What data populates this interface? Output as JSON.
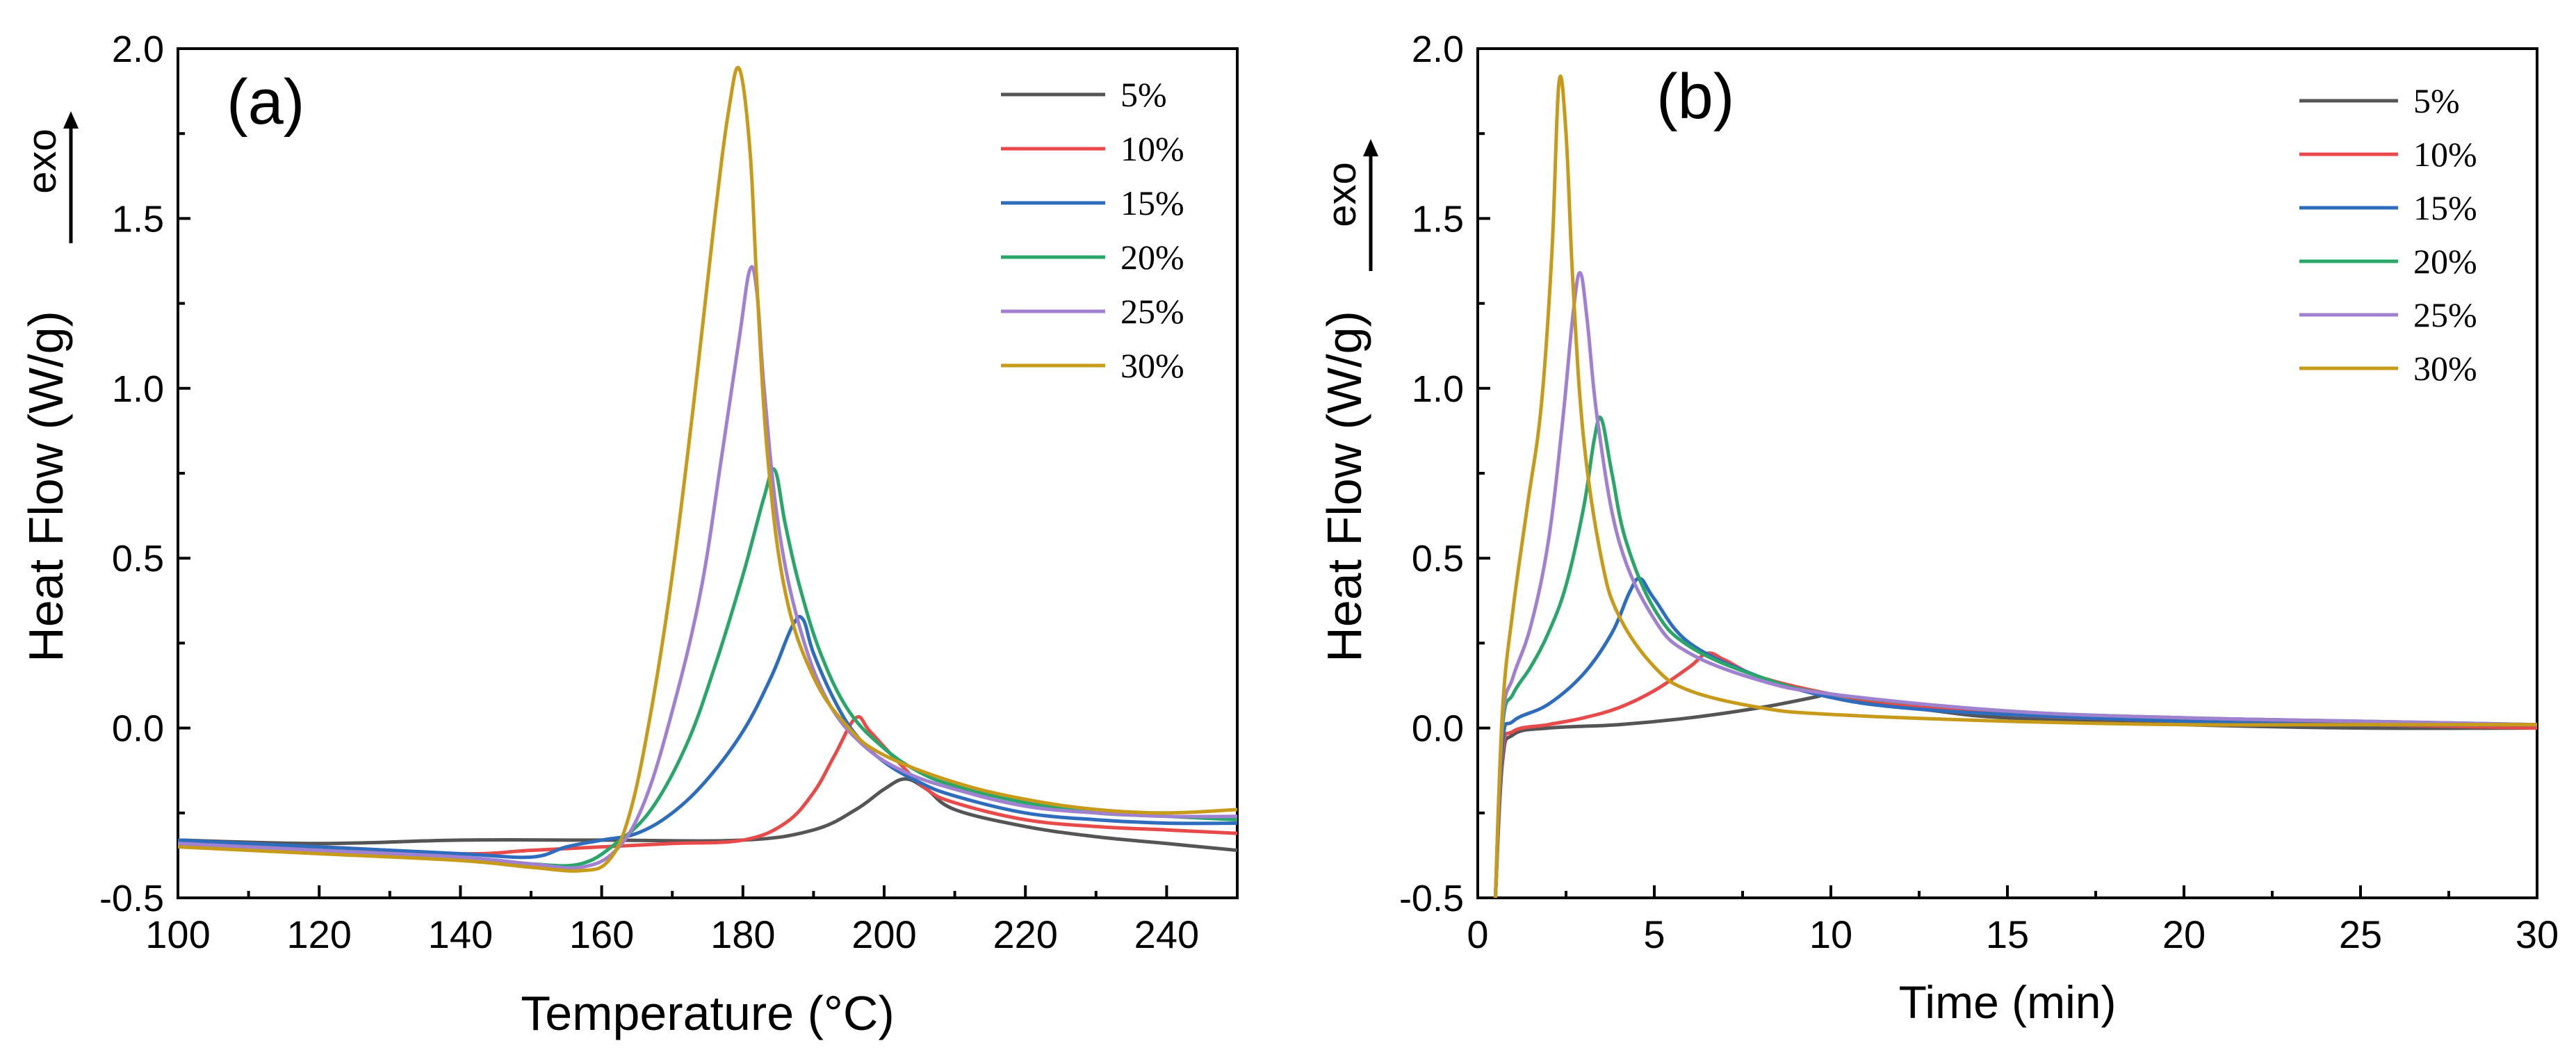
{
  "chart_data": [
    {
      "type": "line",
      "panel_label": "(a)",
      "xlabel": "Temperature (°C)",
      "ylabel": "Heat Flow (W/g)",
      "annotation": "exo",
      "xlim": [
        100,
        250
      ],
      "ylim": [
        -0.5,
        2.0
      ],
      "xticks": [
        "100",
        "120",
        "140",
        "160",
        "180",
        "200",
        "220",
        "240"
      ],
      "xtick_values": [
        100,
        120,
        140,
        160,
        180,
        200,
        220,
        240
      ],
      "yticks": [
        "-0.5",
        "0.0",
        "0.5",
        "1.0",
        "1.5",
        "2.0"
      ],
      "ytick_values": [
        -0.5,
        0.0,
        0.5,
        1.0,
        1.5,
        2.0
      ],
      "legend_position": "top-right",
      "series": [
        {
          "name": "5%",
          "color": "#555555",
          "x": [
            100,
            120,
            140,
            160,
            180,
            190,
            196,
            200,
            203,
            206,
            210,
            220,
            230,
            240,
            250
          ],
          "y": [
            -0.33,
            -0.34,
            -0.33,
            -0.33,
            -0.33,
            -0.3,
            -0.24,
            -0.18,
            -0.15,
            -0.18,
            -0.24,
            -0.29,
            -0.32,
            -0.34,
            -0.36
          ]
        },
        {
          "name": "10%",
          "color": "#e84a4a",
          "x": [
            100,
            120,
            140,
            150,
            160,
            170,
            180,
            186,
            190,
            193,
            196,
            198,
            202,
            206,
            210,
            220,
            230,
            240,
            250
          ],
          "y": [
            -0.34,
            -0.35,
            -0.37,
            -0.36,
            -0.35,
            -0.34,
            -0.33,
            -0.28,
            -0.19,
            -0.08,
            0.03,
            -0.01,
            -0.1,
            -0.18,
            -0.22,
            -0.27,
            -0.29,
            -0.3,
            -0.31
          ]
        },
        {
          "name": "15%",
          "color": "#2e6dbd",
          "x": [
            100,
            120,
            140,
            150,
            155,
            160,
            165,
            170,
            175,
            180,
            184,
            187,
            188.5,
            190,
            193,
            196,
            200,
            205,
            210,
            220,
            230,
            240,
            250
          ],
          "y": [
            -0.33,
            -0.35,
            -0.37,
            -0.38,
            -0.35,
            -0.33,
            -0.31,
            -0.25,
            -0.15,
            -0.01,
            0.15,
            0.3,
            0.32,
            0.22,
            0.08,
            -0.02,
            -0.1,
            -0.16,
            -0.2,
            -0.25,
            -0.27,
            -0.28,
            -0.28
          ]
        },
        {
          "name": "20%",
          "color": "#2aa66a",
          "x": [
            100,
            120,
            140,
            150,
            157,
            162,
            167,
            172,
            176,
            180,
            183,
            184.5,
            186,
            188,
            191,
            195,
            200,
            205,
            210,
            220,
            230,
            240,
            250
          ],
          "y": [
            -0.34,
            -0.36,
            -0.38,
            -0.4,
            -0.4,
            -0.34,
            -0.24,
            -0.05,
            0.18,
            0.45,
            0.68,
            0.76,
            0.6,
            0.42,
            0.22,
            0.05,
            -0.06,
            -0.13,
            -0.17,
            -0.22,
            -0.25,
            -0.26,
            -0.27
          ]
        },
        {
          "name": "25%",
          "color": "#a080d0",
          "x": [
            100,
            120,
            140,
            150,
            157,
            162,
            166,
            170,
            174,
            177,
            179.5,
            181,
            182,
            183,
            185,
            188,
            192,
            197,
            203,
            210,
            220,
            230,
            240,
            250
          ],
          "y": [
            -0.34,
            -0.36,
            -0.38,
            -0.4,
            -0.41,
            -0.36,
            -0.22,
            0.05,
            0.4,
            0.8,
            1.15,
            1.35,
            1.28,
            1.0,
            0.6,
            0.3,
            0.08,
            -0.05,
            -0.13,
            -0.18,
            -0.23,
            -0.25,
            -0.26,
            -0.26
          ]
        },
        {
          "name": "30%",
          "color": "#c89a1a",
          "x": [
            100,
            120,
            140,
            150,
            157,
            161,
            164,
            167,
            170,
            173,
            176,
            178,
            179.5,
            181,
            182,
            183.5,
            186,
            190,
            195,
            200,
            210,
            220,
            230,
            240,
            250
          ],
          "y": [
            -0.35,
            -0.37,
            -0.39,
            -0.41,
            -0.42,
            -0.39,
            -0.25,
            0.05,
            0.45,
            0.95,
            1.5,
            1.82,
            1.94,
            1.7,
            1.3,
            0.8,
            0.4,
            0.15,
            0.0,
            -0.08,
            -0.16,
            -0.21,
            -0.24,
            -0.25,
            -0.24
          ]
        }
      ]
    },
    {
      "type": "line",
      "panel_label": "(b)",
      "xlabel": "Time (min)",
      "ylabel": "Heat Flow (W/g)",
      "annotation": "exo",
      "xlim": [
        0,
        30
      ],
      "ylim": [
        -0.5,
        2.0
      ],
      "xticks": [
        "0",
        "5",
        "10",
        "15",
        "20",
        "25",
        "30"
      ],
      "xtick_values": [
        0,
        5,
        10,
        15,
        20,
        25,
        30
      ],
      "yticks": [
        "-0.5",
        "0.0",
        "0.5",
        "1.0",
        "1.5",
        "2.0"
      ],
      "ytick_values": [
        -0.5,
        0.0,
        0.5,
        1.0,
        1.5,
        2.0
      ],
      "legend_position": "top-right",
      "series": [
        {
          "name": "5%",
          "color": "#555555",
          "x": [
            0.5,
            0.7,
            1.0,
            2,
            4,
            6,
            8,
            9.5,
            10,
            11,
            13,
            15,
            20,
            25,
            30
          ],
          "y": [
            -0.5,
            -0.1,
            -0.02,
            0.0,
            0.01,
            0.03,
            0.06,
            0.09,
            0.1,
            0.08,
            0.05,
            0.03,
            0.01,
            0.0,
            0.0
          ]
        },
        {
          "name": "10%",
          "color": "#e84a4a",
          "x": [
            0.5,
            0.7,
            1.0,
            2,
            3,
            4,
            5,
            6,
            6.5,
            7,
            8,
            10,
            12,
            15,
            20,
            25,
            30
          ],
          "y": [
            -0.5,
            -0.08,
            -0.01,
            0.01,
            0.03,
            0.06,
            0.11,
            0.18,
            0.22,
            0.2,
            0.15,
            0.1,
            0.07,
            0.04,
            0.02,
            0.01,
            0.0
          ]
        },
        {
          "name": "15%",
          "color": "#2e6dbd",
          "x": [
            0.5,
            0.7,
            1.0,
            2,
            3,
            3.8,
            4.3,
            4.6,
            5,
            6,
            8,
            10,
            12,
            15,
            20,
            25,
            30
          ],
          "y": [
            -0.5,
            -0.05,
            0.02,
            0.07,
            0.16,
            0.28,
            0.4,
            0.44,
            0.38,
            0.25,
            0.15,
            0.09,
            0.06,
            0.04,
            0.02,
            0.01,
            0.01
          ]
        },
        {
          "name": "20%",
          "color": "#2aa66a",
          "x": [
            0.5,
            0.7,
            1.0,
            1.5,
            2,
            2.5,
            3,
            3.3,
            3.5,
            3.8,
            4.2,
            5,
            6,
            8,
            10,
            15,
            20,
            25,
            30
          ],
          "y": [
            -0.5,
            0.0,
            0.1,
            0.18,
            0.28,
            0.42,
            0.65,
            0.85,
            0.91,
            0.75,
            0.55,
            0.35,
            0.24,
            0.15,
            0.1,
            0.05,
            0.03,
            0.02,
            0.01
          ]
        },
        {
          "name": "25%",
          "color": "#a080d0",
          "x": [
            0.5,
            0.7,
            1.0,
            1.5,
            2,
            2.4,
            2.7,
            2.9,
            3.1,
            3.4,
            4,
            5,
            6,
            8,
            10,
            15,
            20,
            25,
            30
          ],
          "y": [
            -0.5,
            0.02,
            0.15,
            0.3,
            0.55,
            0.9,
            1.22,
            1.34,
            1.2,
            0.9,
            0.55,
            0.32,
            0.22,
            0.14,
            0.1,
            0.05,
            0.03,
            0.02,
            0.01
          ]
        },
        {
          "name": "30%",
          "color": "#c89a1a",
          "x": [
            0.5,
            0.7,
            1.0,
            1.4,
            1.8,
            2.1,
            2.3,
            2.5,
            2.7,
            3.0,
            3.5,
            4,
            5,
            6,
            8,
            10,
            15,
            20,
            25,
            30
          ],
          "y": [
            -0.5,
            0.05,
            0.35,
            0.65,
            0.95,
            1.4,
            1.9,
            1.75,
            1.3,
            0.85,
            0.5,
            0.33,
            0.18,
            0.11,
            0.06,
            0.04,
            0.02,
            0.01,
            0.01,
            0.01
          ]
        }
      ]
    }
  ]
}
